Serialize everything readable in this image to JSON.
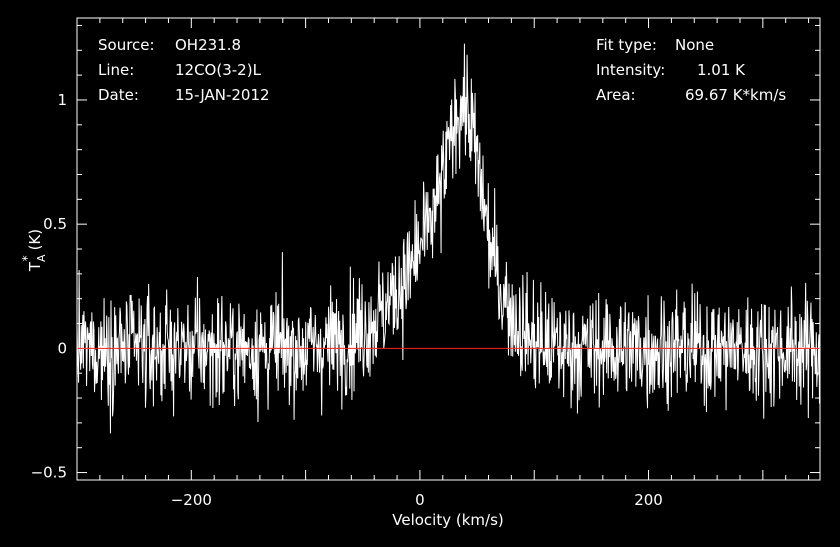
{
  "header": {
    "source_label": "Source:",
    "source_value": "OH231.8",
    "line_label": "Line:",
    "line_value": "12CO(3-2)L",
    "date_label": "Date:",
    "date_value": "15-JAN-2012",
    "fit_label": "Fit type:",
    "fit_value": "None",
    "intensity_label": "Intensity:",
    "intensity_value": "1.01 K",
    "area_label": "Area:",
    "area_value": "69.67 K*km/s"
  },
  "chart_data": {
    "type": "line",
    "xlabel": "Velocity (km/s)",
    "ylabel_main": "T",
    "ylabel_sup": "*",
    "ylabel_sub": "A",
    "ylabel_unit": "(K)",
    "xlim": [
      -300,
      350
    ],
    "ylim": [
      -0.53,
      1.33
    ],
    "xticks": [
      {
        "value": -200,
        "label": "−200"
      },
      {
        "value": 0,
        "label": "0"
      },
      {
        "value": 200,
        "label": "200"
      }
    ],
    "yticks": [
      {
        "value": -0.5,
        "label": "−0.5"
      },
      {
        "value": 0,
        "label": "0"
      },
      {
        "value": 0.5,
        "label": "0.5"
      },
      {
        "value": 1,
        "label": "1"
      }
    ],
    "baseline": {
      "y": 0,
      "color": "#ff2020"
    },
    "series": [
      {
        "style": "noisy-spectrum",
        "color": "#ffffff",
        "noise_rms_K": 0.11,
        "profile_points": [
          {
            "x": -300,
            "y": 0.0
          },
          {
            "x": -100,
            "y": 0.0
          },
          {
            "x": -70,
            "y": 0.03
          },
          {
            "x": -50,
            "y": 0.08
          },
          {
            "x": -30,
            "y": 0.16
          },
          {
            "x": -10,
            "y": 0.3
          },
          {
            "x": 5,
            "y": 0.45
          },
          {
            "x": 15,
            "y": 0.58
          },
          {
            "x": 25,
            "y": 0.78
          },
          {
            "x": 32,
            "y": 0.95
          },
          {
            "x": 38,
            "y": 1.0
          },
          {
            "x": 45,
            "y": 0.9
          },
          {
            "x": 52,
            "y": 0.7
          },
          {
            "x": 60,
            "y": 0.45
          },
          {
            "x": 70,
            "y": 0.25
          },
          {
            "x": 85,
            "y": 0.1
          },
          {
            "x": 100,
            "y": 0.03
          },
          {
            "x": 120,
            "y": 0.0
          },
          {
            "x": 350,
            "y": 0.0
          }
        ]
      }
    ]
  }
}
